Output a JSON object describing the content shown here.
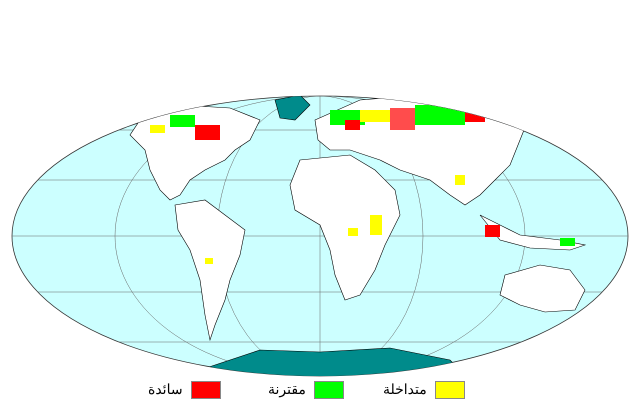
{
  "map": {
    "projection": "mollweide",
    "colors": {
      "ocean": "#ccffff",
      "land": "#ffffff",
      "antarctica": "#008b8b",
      "greenland": "#008b8b"
    }
  },
  "legend": [
    {
      "label": "متداخلة",
      "color": "#ffff00"
    },
    {
      "label": "مقترنة",
      "color": "#00ff00"
    },
    {
      "label": "سائدة",
      "color": "#ff0000"
    }
  ]
}
